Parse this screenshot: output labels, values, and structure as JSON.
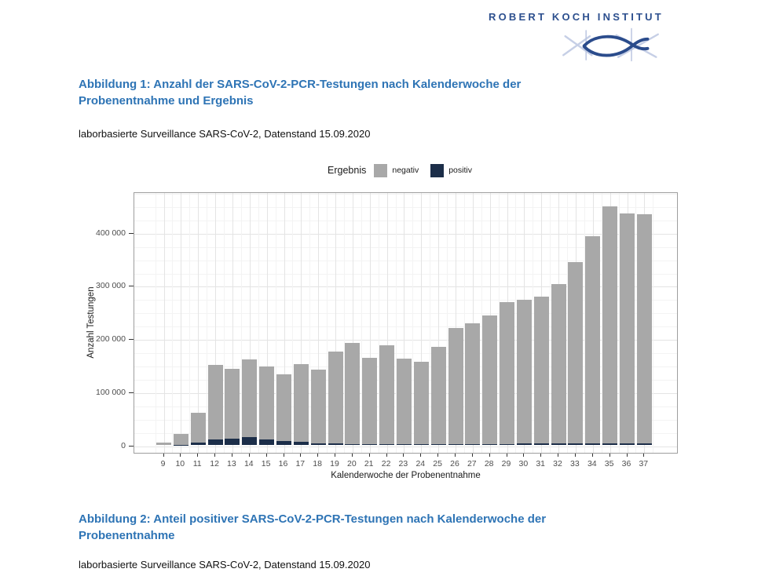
{
  "logo": {
    "text": "ROBERT KOCH INSTITUT",
    "color": "#2c4f8e"
  },
  "figure1": {
    "title_line1": "Abbildung 1: Anzahl der SARS-CoV-2-PCR-Testungen nach Kalenderwoche der",
    "title_line2": "Probenentnahme und Ergebnis",
    "subtitle": "laborbasierte Surveillance SARS-CoV-2, Datenstand 15.09.2020",
    "title_color": "#2e74b5"
  },
  "figure2": {
    "title_line1": "Abbildung 2: Anteil positiver SARS-CoV-2-PCR-Testungen nach Kalenderwoche der",
    "title_line2": "Probenentnahme",
    "subtitle": "laborbasierte Surveillance SARS-CoV-2, Datenstand 15.09.2020",
    "title_color": "#2e74b5"
  },
  "chart_data": {
    "type": "bar",
    "stacked": true,
    "legend_title": "Ergebnis",
    "legend_position": "top-center",
    "xlabel": "Kalenderwoche der Probenentnahme",
    "ylabel": "Anzahl Testungen",
    "categories": [
      9,
      10,
      11,
      12,
      13,
      14,
      15,
      16,
      17,
      18,
      19,
      20,
      21,
      22,
      23,
      24,
      25,
      26,
      27,
      28,
      29,
      30,
      31,
      32,
      33,
      34,
      35,
      36,
      37
    ],
    "series": [
      {
        "name": "negativ",
        "color": "#a8a8a8",
        "values": [
          3900,
          19400,
          56200,
          139000,
          130800,
          145800,
          137700,
          124700,
          145600,
          138600,
          172500,
          189100,
          161400,
          185600,
          160700,
          155800,
          183700,
          217500,
          226300,
          241000,
          265800,
          269600,
          276300,
          298900,
          340600,
          388300,
          444300,
          431600,
          431000
        ]
      },
      {
        "name": "positiv",
        "color": "#1c2e49",
        "values": [
          100,
          600,
          4800,
          11000,
          12200,
          15200,
          10300,
          7300,
          6400,
          3400,
          2500,
          1900,
          1600,
          1400,
          1300,
          1200,
          1300,
          1500,
          1700,
          2000,
          2200,
          2400,
          2700,
          3100,
          3400,
          3700,
          3700,
          3400,
          3000
        ]
      }
    ],
    "stack_bottom": "positiv",
    "ylim": [
      0,
      476000
    ],
    "yticks": [
      0,
      100000,
      200000,
      300000,
      400000
    ],
    "ytick_labels": [
      "0",
      "100 000",
      "200 000",
      "300 000",
      "400 000"
    ],
    "grid": "major+minor",
    "panel_border_color": "#9e9e9e"
  }
}
